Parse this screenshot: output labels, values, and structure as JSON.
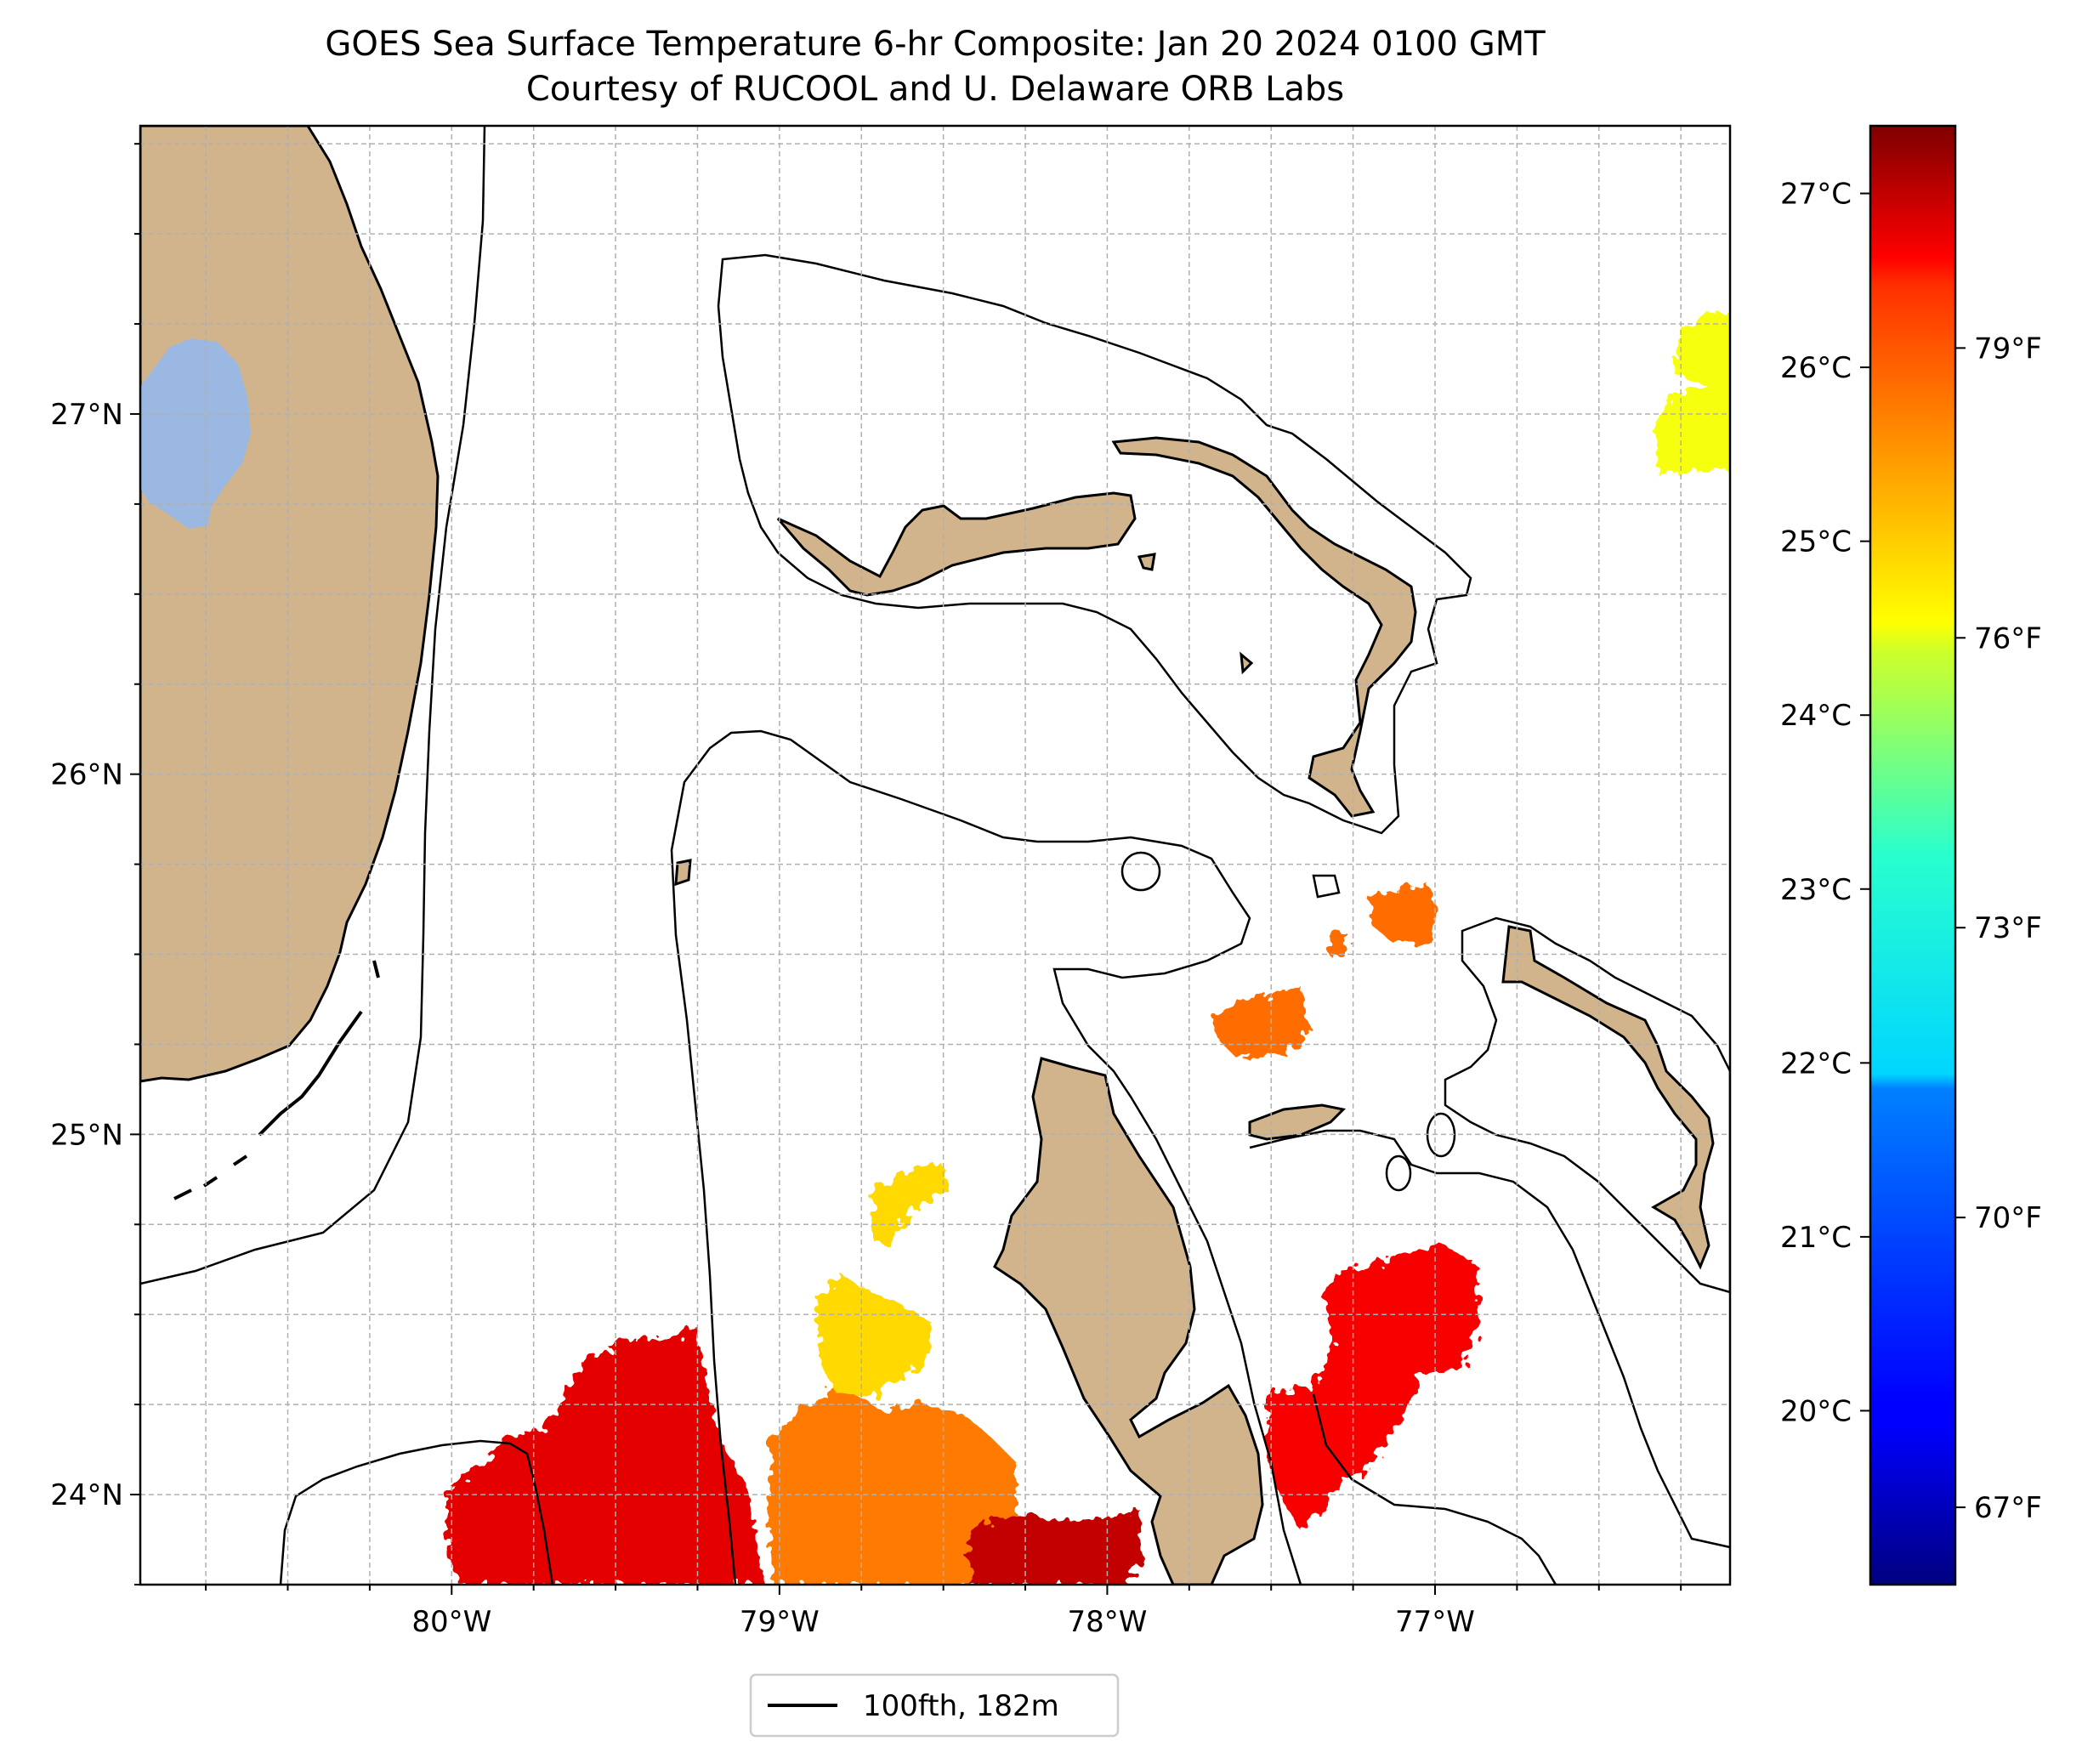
{
  "title": {
    "line1": "GOES Sea Surface Temperature 6-hr Composite: Jan 20 2024 0100 GMT",
    "line2": "Courtesy of RUCOOL and U. Delaware ORB Labs"
  },
  "map": {
    "extent": {
      "lon_min": -80.95,
      "lon_max": -76.1,
      "lat_min": 23.75,
      "lat_max": 27.8
    },
    "lon_ticks": [
      {
        "value": -80,
        "label": "80°W"
      },
      {
        "value": -79,
        "label": "79°W"
      },
      {
        "value": -78,
        "label": "78°W"
      },
      {
        "value": -77,
        "label": "77°W"
      }
    ],
    "lat_ticks": [
      {
        "value": 24,
        "label": "24°N"
      },
      {
        "value": 25,
        "label": "25°N"
      },
      {
        "value": 26,
        "label": "26°N"
      },
      {
        "value": 27,
        "label": "27°N"
      }
    ],
    "gridlines": true,
    "colors": {
      "land": "#d2b48c",
      "lake": "#9ab8e2",
      "contour": "#000000",
      "grid": "#b0b0b0"
    },
    "sst_patches": [
      {
        "name": "southwest-patch",
        "temp_f": 79.8
      },
      {
        "name": "south-central-patch",
        "temp_f": 77.6
      },
      {
        "name": "yellow-north-patch",
        "temp_f": 76.2
      },
      {
        "name": "south-red-patch",
        "temp_f": 80.3
      },
      {
        "name": "southeast-patch",
        "temp_f": 79.5
      },
      {
        "name": "central-orange-patch",
        "temp_f": 77.8
      },
      {
        "name": "northeast-yellow-patch",
        "temp_f": 75.5
      }
    ]
  },
  "colorbar": {
    "colormap": "jet",
    "min_f": 66.2,
    "max_f": 81.3,
    "celsius_ticks": [
      {
        "value": 20,
        "label": "20°C"
      },
      {
        "value": 21,
        "label": "21°C"
      },
      {
        "value": 22,
        "label": "22°C"
      },
      {
        "value": 23,
        "label": "23°C"
      },
      {
        "value": 24,
        "label": "24°C"
      },
      {
        "value": 25,
        "label": "25°C"
      },
      {
        "value": 26,
        "label": "26°C"
      },
      {
        "value": 27,
        "label": "27°C"
      }
    ],
    "fahrenheit_ticks": [
      {
        "value": 67,
        "label": "67°F"
      },
      {
        "value": 70,
        "label": "70°F"
      },
      {
        "value": 73,
        "label": "73°F"
      },
      {
        "value": 76,
        "label": "76°F"
      },
      {
        "value": 79,
        "label": "79°F"
      }
    ]
  },
  "legend": {
    "entries": [
      {
        "label": "100fth, 182m",
        "color": "#000000"
      }
    ]
  }
}
